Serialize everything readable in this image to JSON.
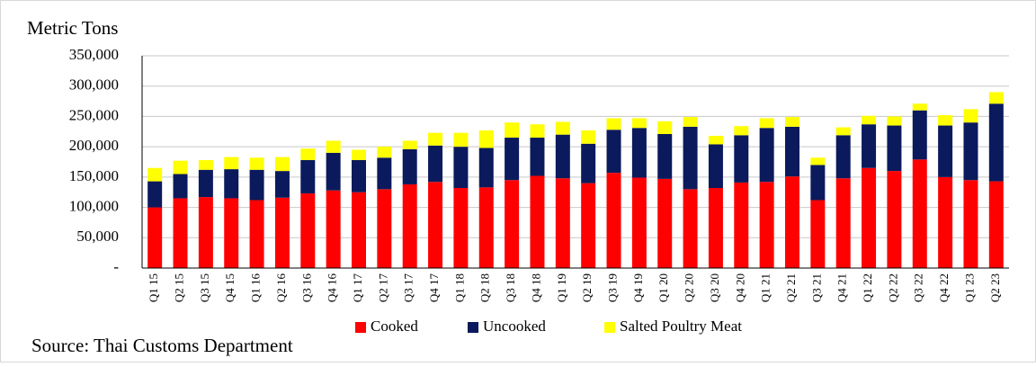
{
  "chart_data": {
    "type": "bar",
    "stacked": true,
    "y_label": "Metric Tons",
    "source": "Source: Thai Customs Department",
    "categories": [
      "Q1 15",
      "Q2 15",
      "Q3 15",
      "Q4 15",
      "Q1 16",
      "Q2 16",
      "Q3 16",
      "Q4 16",
      "Q1 17",
      "Q2 17",
      "Q3 17",
      "Q4 17",
      "Q1 18",
      "Q2 18",
      "Q3 18",
      "Q4 18",
      "Q1 19",
      "Q2 19",
      "Q3 19",
      "Q4 19",
      "Q1 20",
      "Q2 20",
      "Q3 20",
      "Q4 20",
      "Q1 21",
      "Q2 21",
      "Q3 21",
      "Q4 21",
      "Q1 22",
      "Q2 22",
      "Q3 22",
      "Q4 22",
      "Q1 23",
      "Q2 23"
    ],
    "series": [
      {
        "name": "Cooked",
        "color": "#ff0000",
        "values": [
          100000,
          115000,
          117000,
          115000,
          112000,
          116000,
          123000,
          128000,
          125000,
          130000,
          138000,
          142000,
          132000,
          133000,
          145000,
          152000,
          148000,
          140000,
          157000,
          149000,
          147000,
          130000,
          132000,
          141000,
          142000,
          151000,
          112000,
          148000,
          165000,
          160000,
          179000,
          150000,
          145000,
          143000
        ]
      },
      {
        "name": "Uncooked",
        "color": "#0b1a5c",
        "values": [
          43000,
          40000,
          45000,
          48000,
          50000,
          44000,
          55000,
          62000,
          53000,
          52000,
          58000,
          60000,
          68000,
          65000,
          70000,
          63000,
          72000,
          65000,
          71000,
          82000,
          74000,
          103000,
          72000,
          78000,
          89000,
          82000,
          58000,
          71000,
          72000,
          75000,
          81000,
          85000,
          95000,
          128000
        ]
      },
      {
        "name": "Salted Poultry Meat",
        "color": "#ffff00",
        "values": [
          22000,
          22000,
          16000,
          20000,
          20000,
          23000,
          19000,
          20000,
          17000,
          18000,
          14000,
          21000,
          23000,
          29000,
          25000,
          22000,
          21000,
          22000,
          19000,
          16000,
          21000,
          16000,
          14000,
          15000,
          16000,
          16000,
          12000,
          13000,
          14000,
          15000,
          11000,
          17000,
          22000,
          19000
        ]
      }
    ],
    "ylim": [
      0,
      350000
    ],
    "yticks": [
      {
        "value": 0,
        "label": "-"
      },
      {
        "value": 50000,
        "label": "50,000"
      },
      {
        "value": 100000,
        "label": "100,000"
      },
      {
        "value": 150000,
        "label": "150,000"
      },
      {
        "value": 200000,
        "label": "200,000"
      },
      {
        "value": 250000,
        "label": "250,000"
      },
      {
        "value": 300000,
        "label": "300,000"
      },
      {
        "value": 350000,
        "label": "350,000"
      }
    ],
    "grid": true,
    "legend": "bottom"
  }
}
